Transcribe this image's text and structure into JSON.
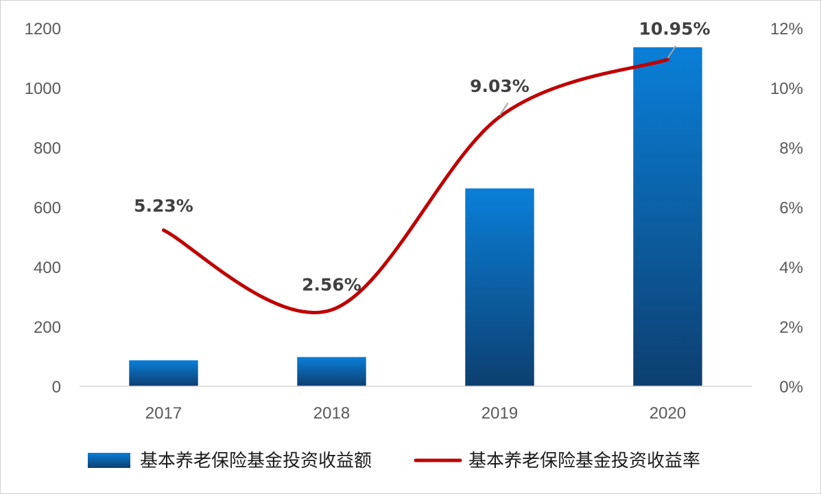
{
  "chart_data": {
    "type": "bar",
    "categories": [
      "2017",
      "2018",
      "2019",
      "2020"
    ],
    "series": [
      {
        "name": "基本养老保险基金投资收益额",
        "type": "bar",
        "axis": "left",
        "values": [
          87,
          98,
          663,
          1136
        ],
        "color": "#0b78d1"
      },
      {
        "name": "基本养老保险基金投资收益率",
        "type": "line",
        "axis": "right",
        "values": [
          5.23,
          2.56,
          9.03,
          10.95
        ],
        "labels": [
          "5.23%",
          "2.56%",
          "9.03%",
          "10.95%"
        ],
        "color": "#c00000"
      }
    ],
    "left_axis": {
      "ylim": [
        0,
        1200
      ],
      "ticks": [
        "0",
        "200",
        "400",
        "600",
        "800",
        "1000",
        "1200"
      ]
    },
    "right_axis": {
      "ylim": [
        0,
        12
      ],
      "ticks": [
        "0%",
        "2%",
        "4%",
        "6%",
        "8%",
        "10%",
        "12%"
      ]
    },
    "grid": false,
    "legend": "bottom"
  },
  "colors": {
    "bar_top": "#0a7fd8",
    "bar_bottom": "#0d3f70",
    "line": "#c00000",
    "axis": "#d9d9d9",
    "tick_text": "#595959"
  }
}
